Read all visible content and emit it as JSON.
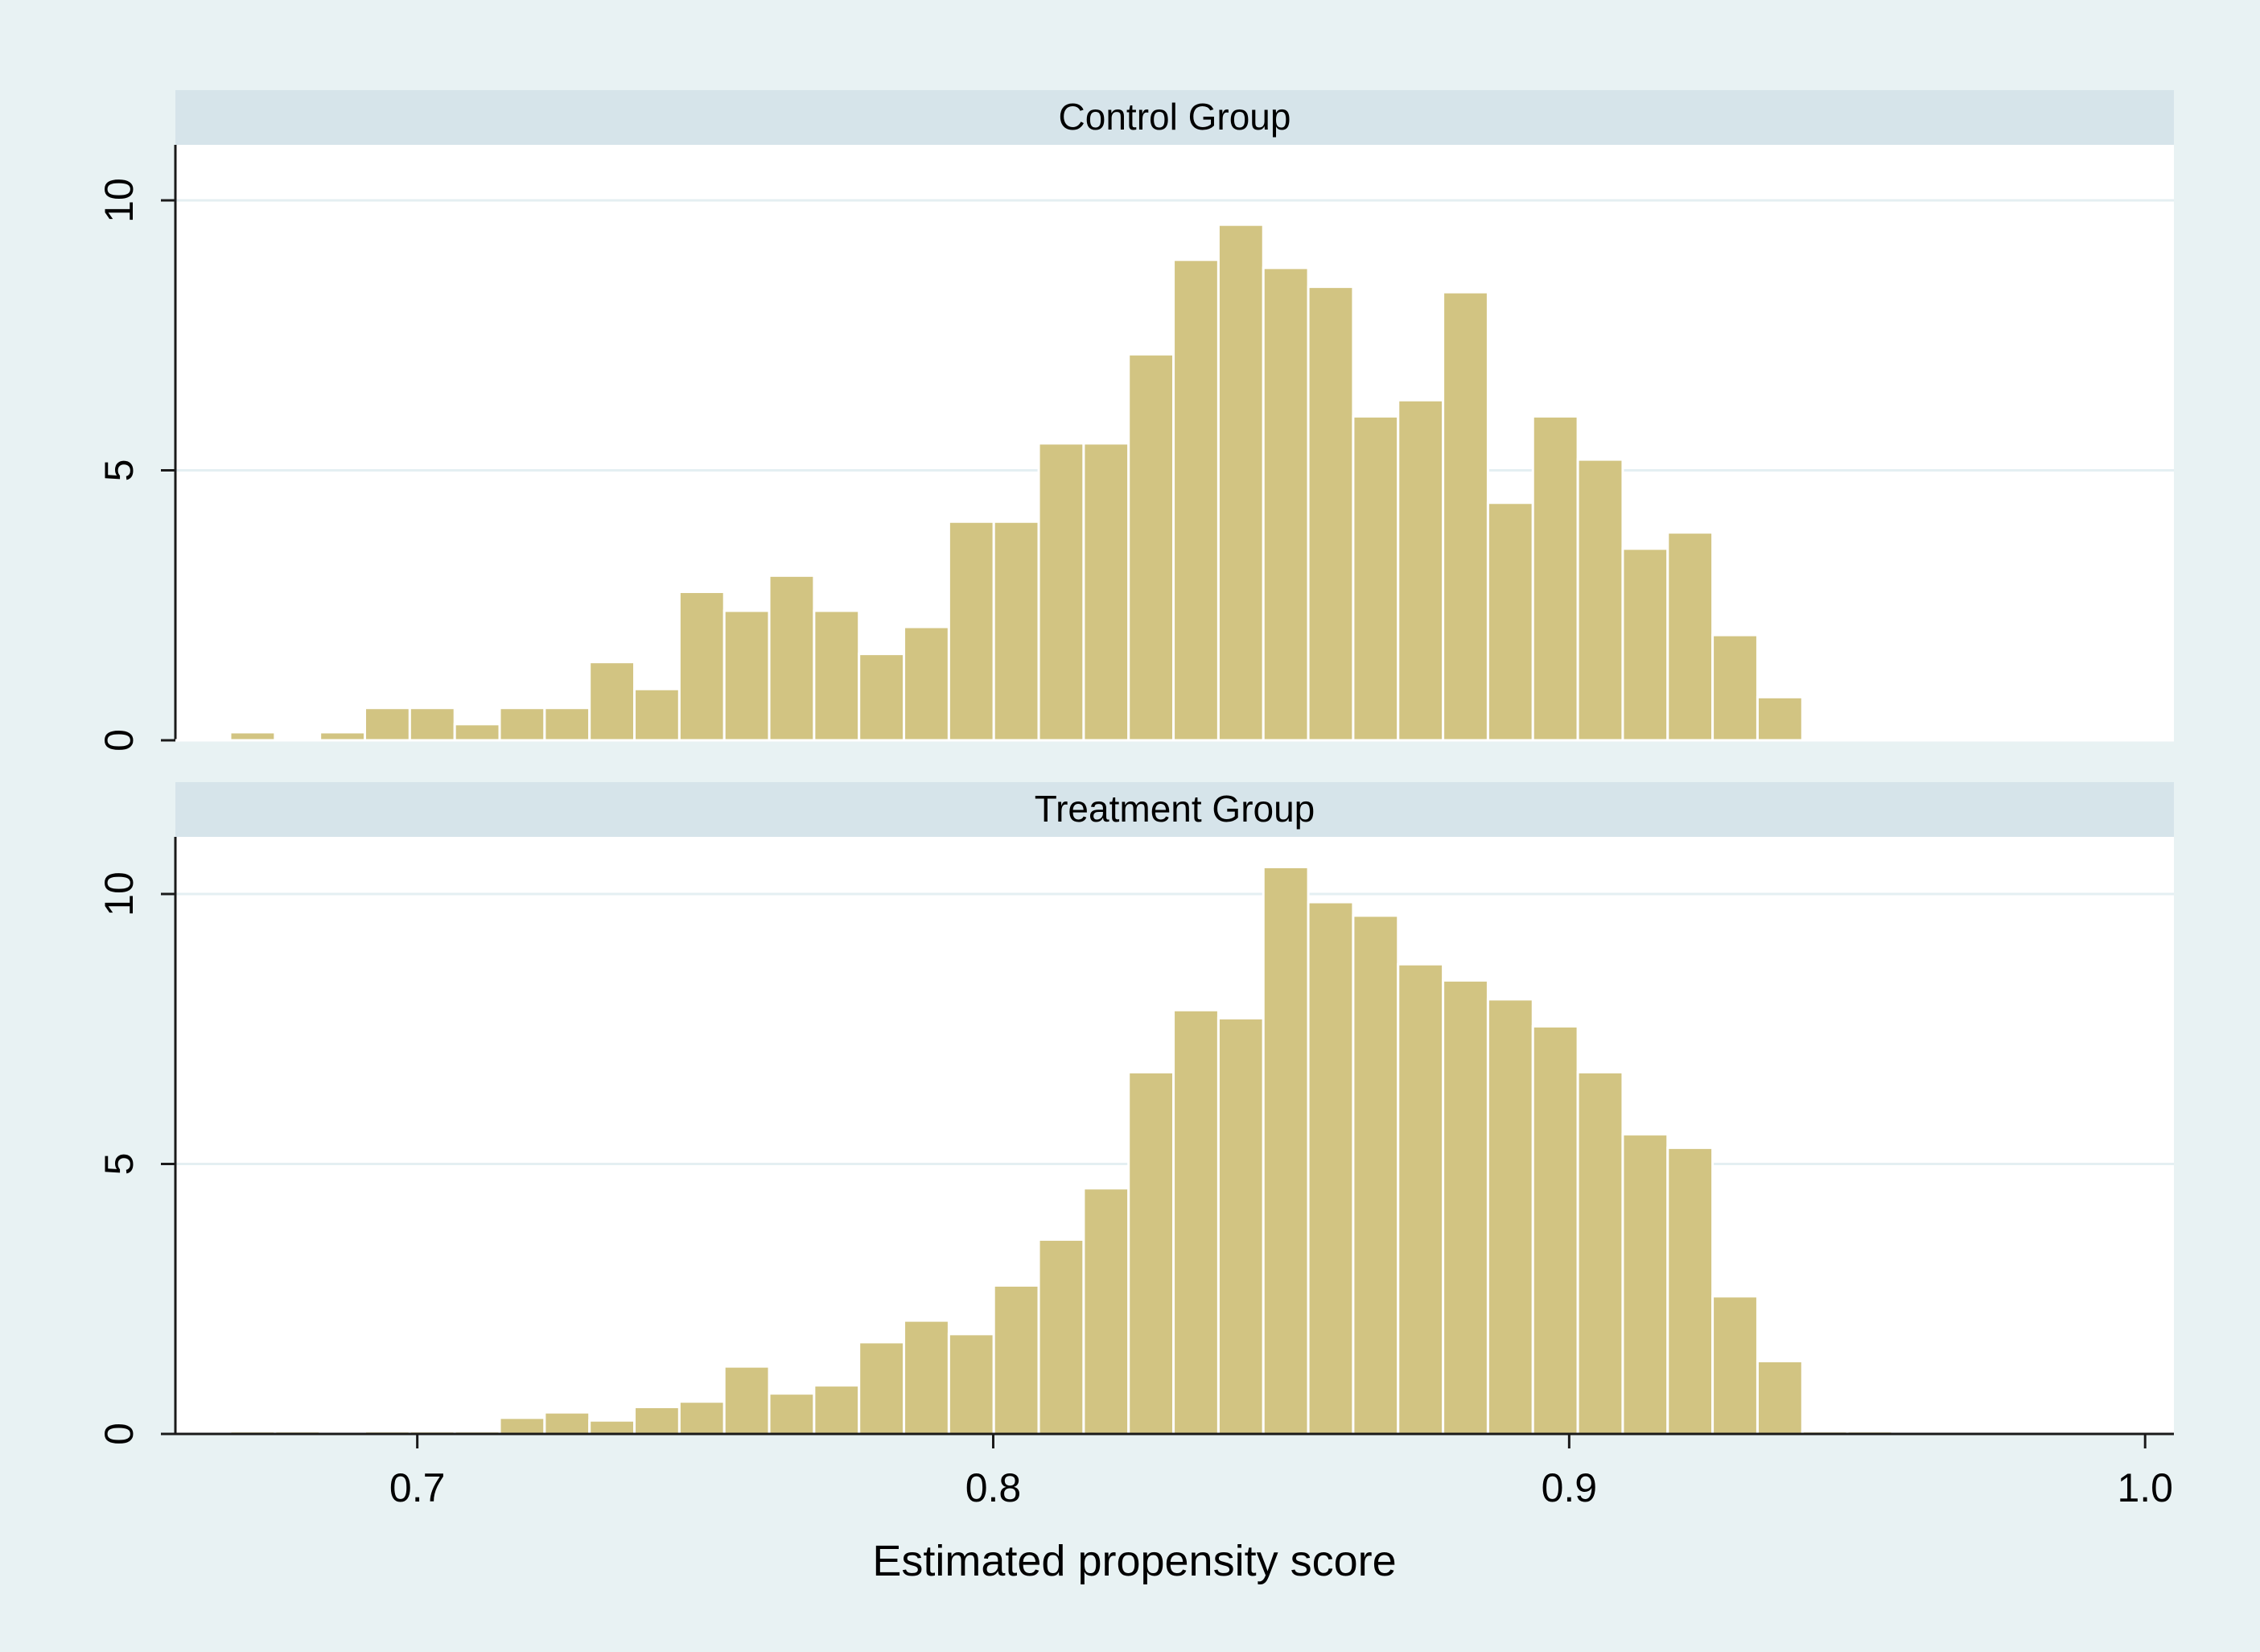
{
  "colors": {
    "outer_background": "#e8f2f3",
    "plot_background": "#ffffff",
    "strip_background": "#d6e4ea",
    "gridline": "#e4eff2",
    "bar_fill": "#d2c482",
    "bar_edge": "#ffffff",
    "axis": "#1a1a1a"
  },
  "chart_data": {
    "type": "bar",
    "subtype": "histogram",
    "xlabel": "Estimated propensity score",
    "ylabel": "",
    "xlim": [
      0.658,
      1.005
    ],
    "ylim": [
      0,
      11
    ],
    "x_ticks": [
      0.7,
      0.8,
      0.9,
      1.0
    ],
    "x_tick_labels": [
      "0.7",
      "0.8",
      "0.9",
      "1.0"
    ],
    "y_ticks": [
      0,
      5,
      10
    ],
    "y_tick_labels": [
      "0",
      "5",
      "10"
    ],
    "grid": true,
    "bin_start": 0.6675,
    "bin_width": 0.0078,
    "panels": [
      {
        "title": "Control Group",
        "values": [
          0.15,
          0,
          0.15,
          0.6,
          0.6,
          0.3,
          0.6,
          0.6,
          1.45,
          0.95,
          2.75,
          2.4,
          3.05,
          2.4,
          1.6,
          2.1,
          4.05,
          4.05,
          5.5,
          5.5,
          7.15,
          8.9,
          9.55,
          8.75,
          8.4,
          6.0,
          6.3,
          8.3,
          4.4,
          6.0,
          5.2,
          3.55,
          3.85,
          1.95,
          0.8
        ]
      },
      {
        "title": "Treatment Group",
        "values": [
          0.05,
          0.05,
          0,
          0.05,
          0.05,
          0.05,
          0.3,
          0.4,
          0.25,
          0.5,
          0.6,
          1.25,
          0.75,
          0.9,
          1.7,
          2.1,
          1.85,
          2.75,
          3.6,
          4.55,
          6.7,
          7.85,
          7.7,
          10.5,
          9.85,
          9.6,
          8.7,
          8.4,
          8.05,
          7.55,
          6.7,
          5.55,
          5.3,
          2.55,
          1.35,
          0.05,
          0.05
        ]
      }
    ]
  }
}
